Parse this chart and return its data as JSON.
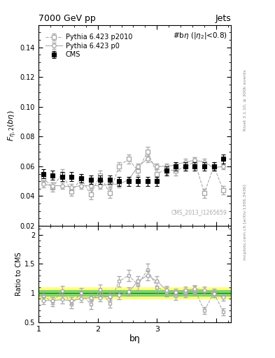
{
  "title": "7000 GeV pp",
  "title_right": "Jets",
  "annotation": "#bη (|η₂|<0.8)",
  "watermark": "CMS_2013_I1265659",
  "right_label": "mcplots.cern.ch [arXiv:1306.3436]",
  "right_label2": "Rivet 3.1.10, ≥ 300k events",
  "xlabel": "bη",
  "ylabel_ratio": "Ratio to CMS",
  "ylim": [
    0.02,
    0.155
  ],
  "ylim_ratio": [
    0.5,
    2.15
  ],
  "yticks": [
    0.02,
    0.04,
    0.06,
    0.08,
    0.1,
    0.12,
    0.14
  ],
  "yticks_ratio": [
    0.5,
    1.0,
    1.5,
    2.0
  ],
  "xlim": [
    0,
    3.25
  ],
  "cms_x": [
    0.08,
    0.24,
    0.4,
    0.56,
    0.72,
    0.88,
    1.04,
    1.2,
    1.36,
    1.52,
    1.68,
    1.84,
    2.0,
    2.16,
    2.32,
    2.48,
    2.64,
    2.8,
    2.96,
    3.12
  ],
  "cms_y": [
    0.055,
    0.054,
    0.053,
    0.053,
    0.052,
    0.051,
    0.051,
    0.051,
    0.05,
    0.05,
    0.05,
    0.05,
    0.05,
    0.057,
    0.06,
    0.06,
    0.06,
    0.06,
    0.06,
    0.065
  ],
  "cms_yerr": [
    0.003,
    0.003,
    0.003,
    0.003,
    0.003,
    0.003,
    0.003,
    0.003,
    0.003,
    0.003,
    0.003,
    0.003,
    0.003,
    0.003,
    0.003,
    0.003,
    0.003,
    0.003,
    0.003,
    0.003
  ],
  "p0_x": [
    0.08,
    0.24,
    0.4,
    0.56,
    0.72,
    0.88,
    1.04,
    1.2,
    1.36,
    1.52,
    1.68,
    1.84,
    2.0,
    2.16,
    2.32,
    2.48,
    2.64,
    2.8,
    2.96,
    3.12
  ],
  "p0_y": [
    0.048,
    0.047,
    0.047,
    0.046,
    0.047,
    0.047,
    0.047,
    0.048,
    0.048,
    0.051,
    0.06,
    0.065,
    0.06,
    0.06,
    0.061,
    0.063,
    0.064,
    0.063,
    0.059,
    0.06
  ],
  "p0_yerr": [
    0.002,
    0.002,
    0.002,
    0.002,
    0.002,
    0.002,
    0.002,
    0.002,
    0.002,
    0.002,
    0.002,
    0.002,
    0.002,
    0.002,
    0.002,
    0.002,
    0.002,
    0.002,
    0.002,
    0.002
  ],
  "p2010_x": [
    0.08,
    0.24,
    0.4,
    0.56,
    0.72,
    0.88,
    1.04,
    1.2,
    1.36,
    1.52,
    1.68,
    1.84,
    2.0,
    2.16,
    2.32,
    2.48,
    2.64,
    2.8,
    2.96,
    3.12
  ],
  "p2010_y": [
    0.052,
    0.046,
    0.055,
    0.043,
    0.052,
    0.041,
    0.054,
    0.042,
    0.06,
    0.065,
    0.057,
    0.07,
    0.055,
    0.058,
    0.057,
    0.06,
    0.063,
    0.042,
    0.06,
    0.044
  ],
  "p2010_yerr": [
    0.003,
    0.003,
    0.003,
    0.003,
    0.003,
    0.003,
    0.003,
    0.003,
    0.003,
    0.003,
    0.003,
    0.003,
    0.003,
    0.003,
    0.003,
    0.003,
    0.003,
    0.003,
    0.003,
    0.003
  ],
  "band_green_lo": 0.95,
  "band_green_hi": 1.05,
  "band_yellow_lo": 0.9,
  "band_yellow_hi": 1.1,
  "color_cms": "#000000",
  "color_p0": "#aaaaaa",
  "color_p2010": "#aaaaaa",
  "legend_labels": [
    "CMS",
    "Pythia 6.423 p0",
    "Pythia 6.423 p2010"
  ]
}
